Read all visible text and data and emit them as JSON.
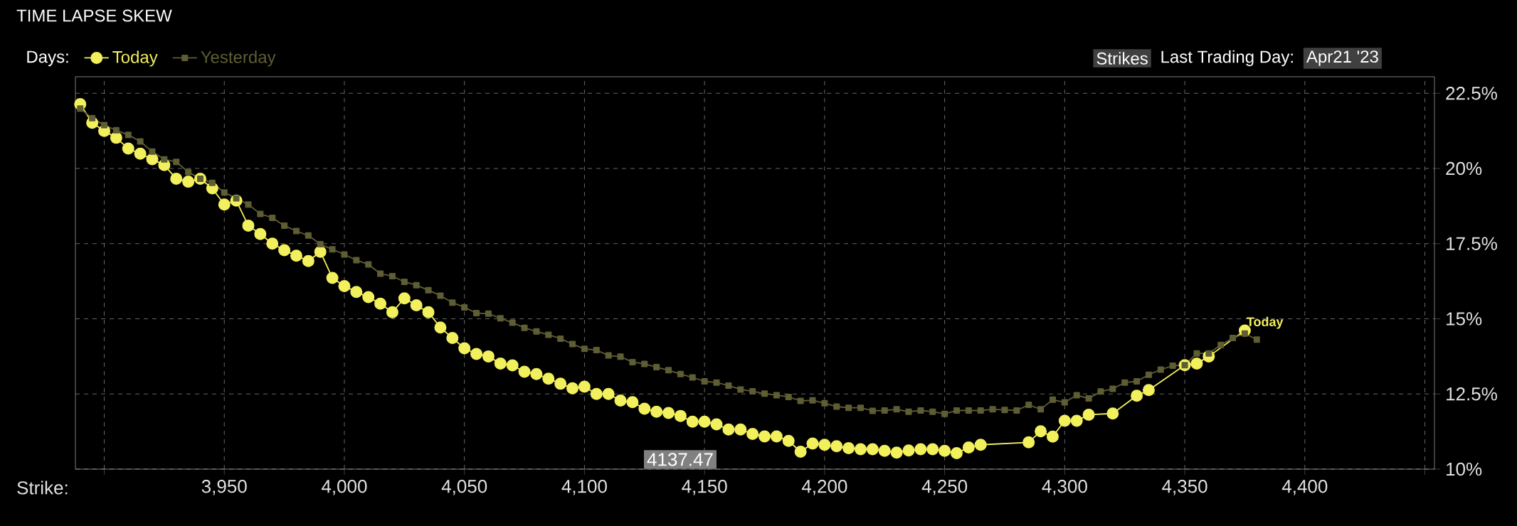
{
  "chart_data": {
    "type": "line",
    "title": "TIME LAPSE SKEW",
    "xlabel": "Strike:",
    "legend_title": "Days:",
    "series": [
      {
        "name": "Today",
        "color": "#f2f05c",
        "x": [
          3890,
          3895,
          3900,
          3905,
          3910,
          3915,
          3920,
          3925,
          3930,
          3935,
          3940,
          3945,
          3950,
          3955,
          3960,
          3965,
          3970,
          3975,
          3980,
          3985,
          3990,
          3995,
          4000,
          4005,
          4010,
          4015,
          4020,
          4025,
          4030,
          4035,
          4040,
          4045,
          4050,
          4055,
          4060,
          4065,
          4070,
          4075,
          4080,
          4085,
          4090,
          4095,
          4100,
          4105,
          4110,
          4115,
          4120,
          4125,
          4130,
          4135,
          4140,
          4145,
          4150,
          4155,
          4160,
          4165,
          4170,
          4175,
          4180,
          4185,
          4190,
          4195,
          4200,
          4205,
          4210,
          4215,
          4220,
          4225,
          4230,
          4235,
          4240,
          4245,
          4250,
          4255,
          4260,
          4265,
          4285,
          4290,
          4295,
          4300,
          4305,
          4310,
          4320,
          4330,
          4335,
          4350,
          4355,
          4360,
          4375
        ],
        "values": [
          22.14,
          21.52,
          21.25,
          21.02,
          20.66,
          20.49,
          20.31,
          20.11,
          19.66,
          19.56,
          19.66,
          19.34,
          18.8,
          18.93,
          18.1,
          17.82,
          17.5,
          17.28,
          17.1,
          16.92,
          17.23,
          16.36,
          16.09,
          15.89,
          15.72,
          15.5,
          15.22,
          15.68,
          15.45,
          15.22,
          14.71,
          14.36,
          14.02,
          13.83,
          13.75,
          13.51,
          13.45,
          13.24,
          13.16,
          13.01,
          12.84,
          12.69,
          12.74,
          12.5,
          12.5,
          12.28,
          12.23,
          12.01,
          11.91,
          11.87,
          11.77,
          11.58,
          11.58,
          11.49,
          11.32,
          11.32,
          11.17,
          11.09,
          11.09,
          10.94,
          10.58,
          10.85,
          10.81,
          10.76,
          10.7,
          10.66,
          10.66,
          10.61,
          10.55,
          10.62,
          10.66,
          10.66,
          10.61,
          10.53,
          10.72,
          10.81,
          10.89,
          11.26,
          11.08,
          11.61,
          11.61,
          11.81,
          11.85,
          12.44,
          12.63,
          13.46,
          13.51,
          13.75,
          14.61
        ]
      },
      {
        "name": "Yesterday",
        "color": "#5e5d34",
        "marker": "square",
        "x": [
          3890,
          3895,
          3900,
          3905,
          3910,
          3915,
          3920,
          3925,
          3930,
          3935,
          3940,
          3945,
          3950,
          3955,
          3960,
          3965,
          3970,
          3975,
          3980,
          3985,
          3990,
          3995,
          4000,
          4005,
          4010,
          4015,
          4020,
          4025,
          4030,
          4035,
          4040,
          4045,
          4050,
          4055,
          4060,
          4065,
          4070,
          4075,
          4080,
          4085,
          4090,
          4095,
          4100,
          4105,
          4110,
          4115,
          4120,
          4125,
          4130,
          4135,
          4140,
          4145,
          4150,
          4155,
          4160,
          4165,
          4170,
          4175,
          4180,
          4185,
          4190,
          4195,
          4200,
          4205,
          4210,
          4215,
          4220,
          4225,
          4230,
          4235,
          4240,
          4245,
          4250,
          4255,
          4260,
          4265,
          4270,
          4275,
          4280,
          4285,
          4290,
          4295,
          4300,
          4305,
          4310,
          4315,
          4320,
          4325,
          4330,
          4335,
          4340,
          4345,
          4350,
          4355,
          4360,
          4365,
          4370,
          4375,
          4380
        ],
        "values": [
          21.99,
          21.67,
          21.44,
          21.27,
          21.12,
          20.9,
          20.56,
          20.3,
          20.22,
          19.88,
          19.66,
          19.52,
          19.2,
          19.01,
          18.8,
          18.49,
          18.36,
          18.1,
          17.92,
          17.77,
          17.48,
          17.31,
          17.14,
          16.95,
          16.81,
          16.5,
          16.42,
          16.23,
          16.12,
          15.95,
          15.77,
          15.54,
          15.38,
          15.19,
          15.17,
          15.02,
          14.87,
          14.7,
          14.58,
          14.47,
          14.34,
          14.16,
          14.0,
          13.96,
          13.78,
          13.74,
          13.56,
          13.5,
          13.39,
          13.29,
          13.16,
          13.05,
          12.92,
          12.88,
          12.78,
          12.65,
          12.59,
          12.51,
          12.46,
          12.4,
          12.27,
          12.29,
          12.19,
          12.08,
          12.04,
          12.04,
          11.94,
          11.95,
          11.99,
          11.91,
          11.95,
          11.91,
          11.84,
          11.95,
          11.95,
          11.95,
          11.99,
          11.97,
          11.95,
          12.14,
          11.99,
          12.31,
          12.22,
          12.46,
          12.35,
          12.58,
          12.67,
          12.88,
          12.92,
          13.14,
          13.31,
          13.44,
          13.46,
          13.85,
          13.85,
          14.13,
          14.36,
          14.51,
          14.31
        ]
      }
    ],
    "xlim": [
      3888,
      4454
    ],
    "ylim": [
      10,
      23.05
    ],
    "xticks": [
      {
        "value": 3900,
        "label": null
      },
      {
        "value": 3950,
        "label": "3,950"
      },
      {
        "value": 4000,
        "label": "4,000"
      },
      {
        "value": 4050,
        "label": "4,050"
      },
      {
        "value": 4100,
        "label": "4,100"
      },
      {
        "value": 4150,
        "label": "4,150"
      },
      {
        "value": 4200,
        "label": "4,200"
      },
      {
        "value": 4250,
        "label": "4,250"
      },
      {
        "value": 4300,
        "label": "4,300"
      },
      {
        "value": 4350,
        "label": "4,350"
      },
      {
        "value": 4400,
        "label": "4,400"
      },
      {
        "value": 4450,
        "label": null
      }
    ],
    "yticks": [
      {
        "value": 10,
        "label": "10%"
      },
      {
        "value": 12.5,
        "label": "12.5%"
      },
      {
        "value": 15,
        "label": "15%"
      },
      {
        "value": 17.5,
        "label": "17.5%"
      },
      {
        "value": 20,
        "label": "20%"
      },
      {
        "value": 22.5,
        "label": "22.5%"
      }
    ],
    "grid": true,
    "legend": "top left",
    "marker": "circle",
    "line_style": "solid",
    "annotations": [
      "Strikes",
      "Last Trading Day:",
      "Apr21 '23",
      {
        "text": "Today",
        "x": 4375,
        "y": 14.61
      },
      "4137.47"
    ]
  }
}
